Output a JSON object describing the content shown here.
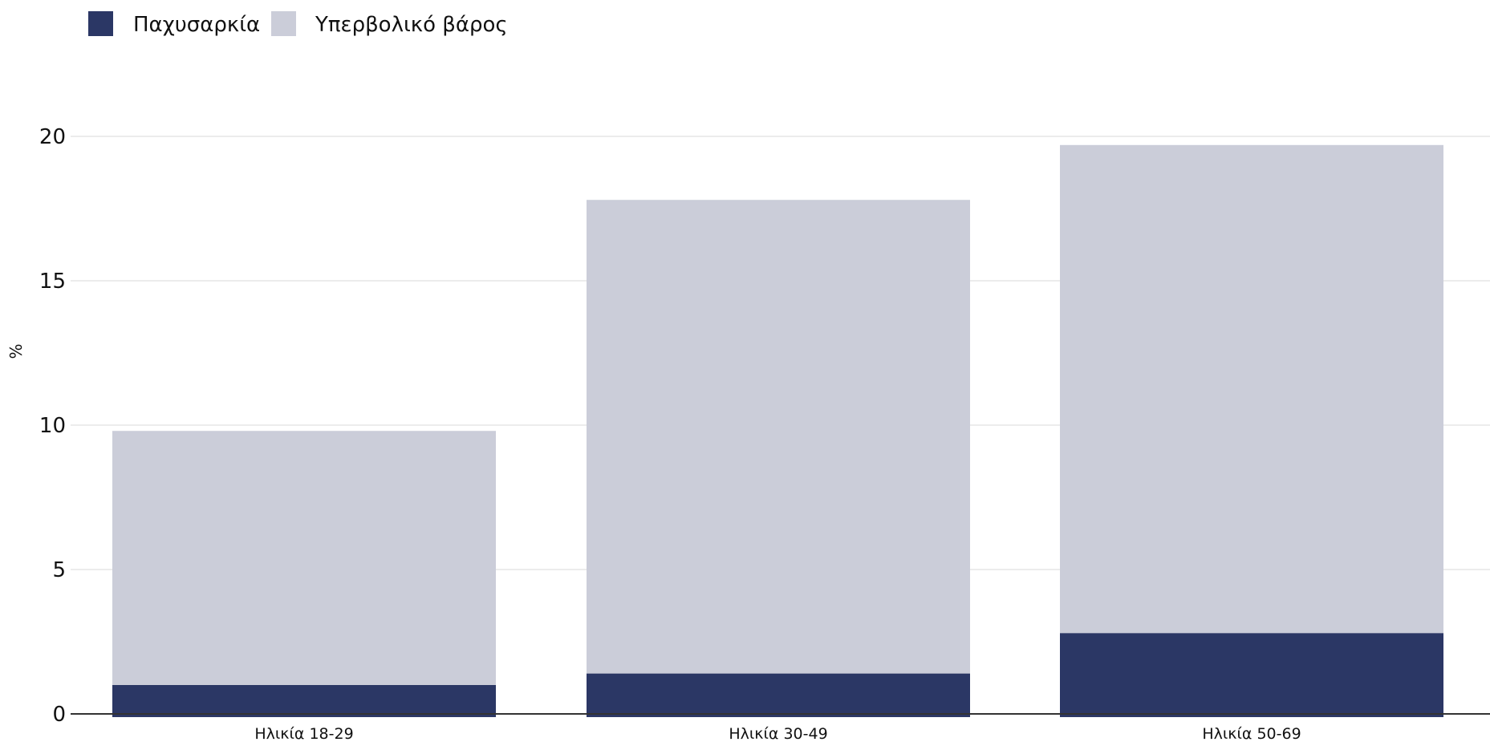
{
  "chart_data": {
    "type": "bar",
    "stacked": true,
    "categories": [
      "Ηλικία 18-29",
      "Ηλικία 30-49",
      "Ηλικία 50-69"
    ],
    "series": [
      {
        "name": "Παχυσαρκία",
        "values": [
          1.0,
          1.4,
          2.8
        ],
        "color": "#2b3765"
      },
      {
        "name": "Υπερβολικό βάρος",
        "values": [
          8.8,
          16.4,
          16.9
        ],
        "color": "#cbcdd9"
      }
    ],
    "title": "",
    "xlabel": "",
    "ylabel": "%",
    "ylim": [
      0,
      20
    ],
    "yticks": [
      0,
      5,
      10,
      15,
      20
    ],
    "grid": true,
    "legend_position": "top-left"
  }
}
